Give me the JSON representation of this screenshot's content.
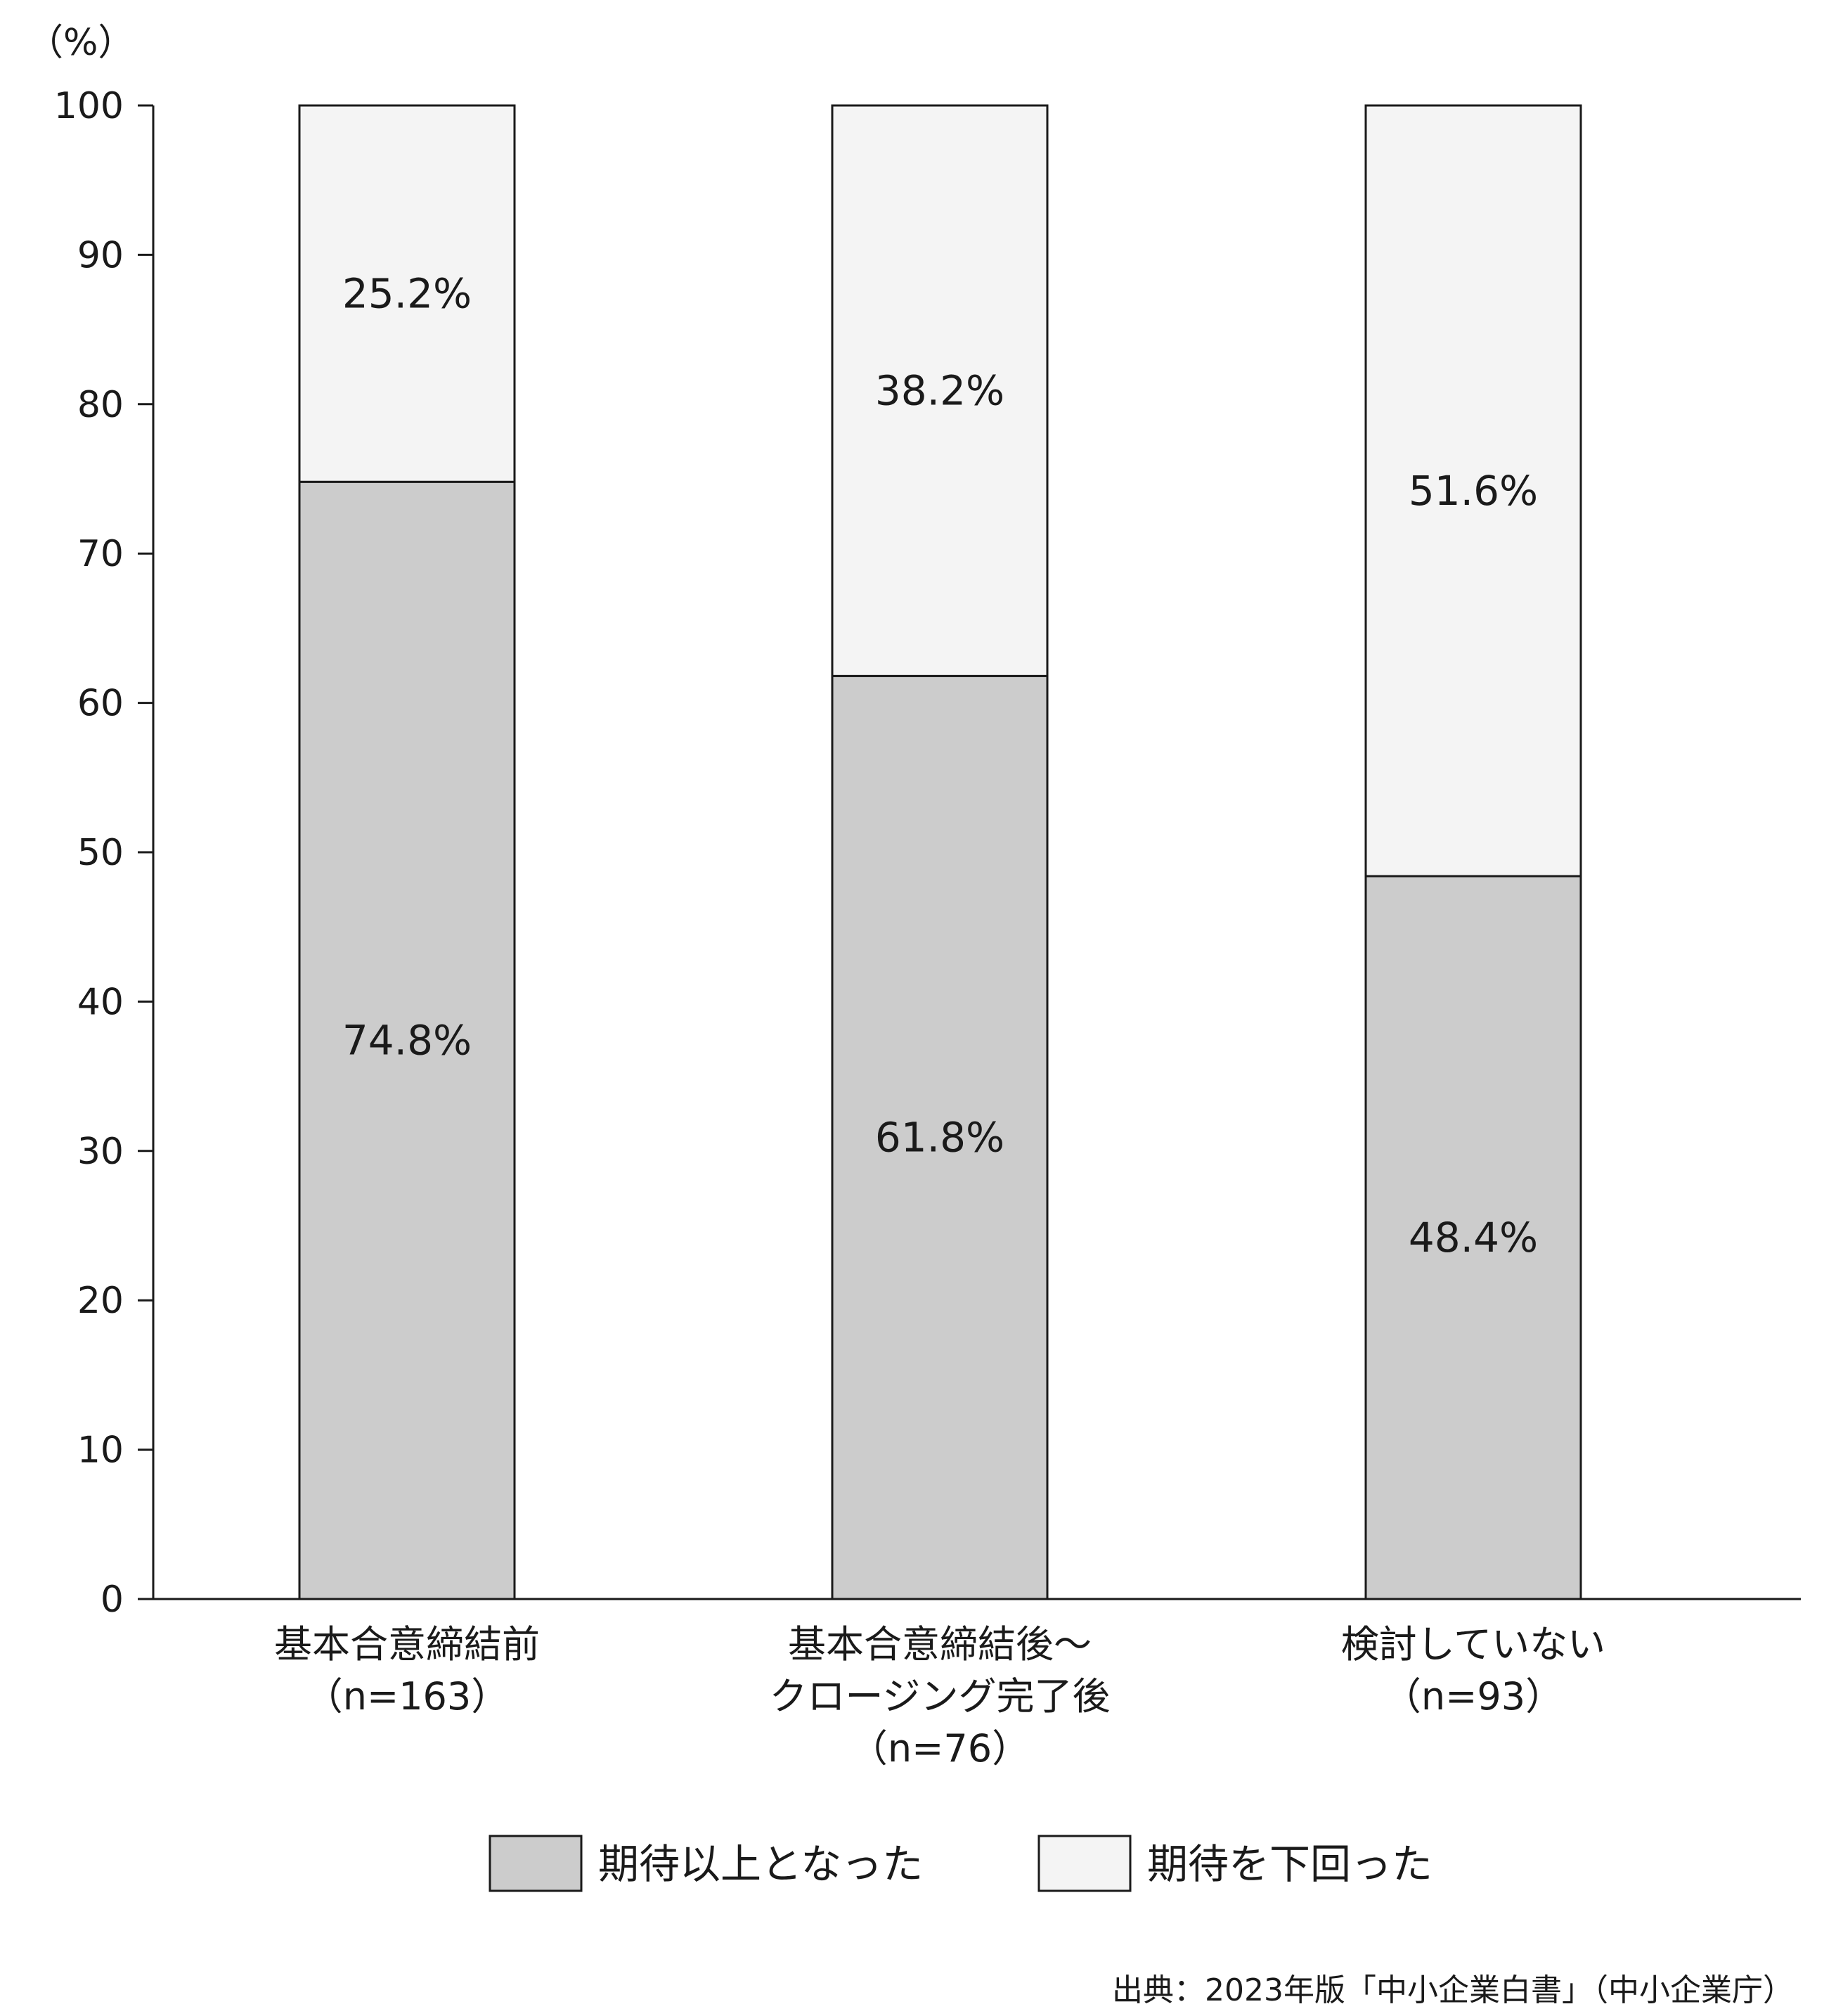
{
  "chart_data": {
    "type": "bar",
    "stacked": true,
    "unit_label": "（%）",
    "ylim": [
      0,
      100
    ],
    "yticks": [
      0,
      10,
      20,
      30,
      40,
      50,
      60,
      70,
      80,
      90,
      100
    ],
    "grid": false,
    "categories": [
      [
        "基本合意締結前",
        "（n=163）"
      ],
      [
        "基本合意締結後～",
        "クロージング完了後",
        "（n=76）"
      ],
      [
        "検討していない",
        "（n=93）"
      ]
    ],
    "series": [
      {
        "name": "期待以上となった",
        "color": "#cccccc",
        "values": [
          74.8,
          61.8,
          48.4
        ],
        "labels": [
          "74.8%",
          "61.8%",
          "48.4%"
        ]
      },
      {
        "name": "期待を下回った",
        "color": "#f4f4f4",
        "values": [
          25.2,
          38.2,
          51.6
        ],
        "labels": [
          "25.2%",
          "38.2%",
          "51.6%"
        ]
      }
    ],
    "legend_position": "bottom",
    "source": "出典：2023年版「中小企業白書」（中小企業庁）"
  }
}
